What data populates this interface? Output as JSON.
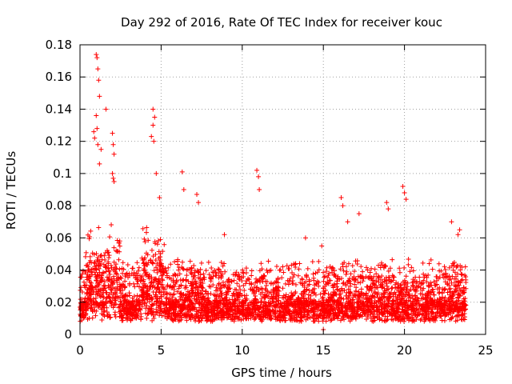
{
  "chart_data": {
    "type": "scatter",
    "title": "Day 292 of 2016, Rate Of TEC Index for receiver kouc",
    "xlabel": "GPS time / hours",
    "ylabel": "ROTI / TECUs",
    "xlim": [
      0,
      25
    ],
    "ylim": [
      0,
      0.18
    ],
    "xticks": [
      0,
      5,
      10,
      15,
      20,
      25
    ],
    "xtick_labels": [
      "0",
      "5",
      "10",
      "15",
      "20",
      "25"
    ],
    "yticks": [
      0,
      0.02,
      0.04,
      0.06,
      0.08,
      0.1,
      0.12,
      0.14,
      0.16,
      0.18
    ],
    "ytick_labels": [
      "0",
      "0.02",
      "0.04",
      "0.06",
      "0.08",
      "0.1",
      "0.12",
      "0.14",
      "0.16",
      "0.18"
    ],
    "grid": true,
    "marker": "+",
    "color": "#ff0000",
    "data_range_x": [
      0,
      23.8
    ],
    "series": [
      {
        "name": "ROTI",
        "x": [
          1.0,
          1.05,
          1.1,
          1.15,
          1.2,
          1.0,
          1.05,
          1.1,
          1.2,
          0.85,
          0.9,
          1.3,
          1.6,
          2.0,
          2.05,
          2.1,
          2.0,
          2.05,
          2.1,
          4.4,
          4.5,
          4.6,
          4.5,
          4.55,
          4.7,
          4.9,
          6.3,
          6.4,
          7.2,
          7.3,
          10.9,
          11.0,
          11.05,
          16.1,
          16.2,
          16.5,
          17.2,
          18.9,
          19.0,
          19.9,
          20.0,
          20.1,
          22.9,
          23.3,
          23.4,
          15.0,
          8.9,
          12.5,
          13.9,
          14.9
        ],
        "y": [
          0.174,
          0.172,
          0.165,
          0.158,
          0.148,
          0.136,
          0.128,
          0.118,
          0.106,
          0.126,
          0.122,
          0.115,
          0.14,
          0.125,
          0.118,
          0.112,
          0.1,
          0.097,
          0.095,
          0.123,
          0.13,
          0.135,
          0.14,
          0.12,
          0.1,
          0.085,
          0.101,
          0.09,
          0.087,
          0.082,
          0.102,
          0.098,
          0.09,
          0.085,
          0.08,
          0.07,
          0.075,
          0.082,
          0.078,
          0.092,
          0.088,
          0.084,
          0.07,
          0.062,
          0.065,
          0.003,
          0.062,
          0.042,
          0.06,
          0.055
        ]
      }
    ]
  }
}
